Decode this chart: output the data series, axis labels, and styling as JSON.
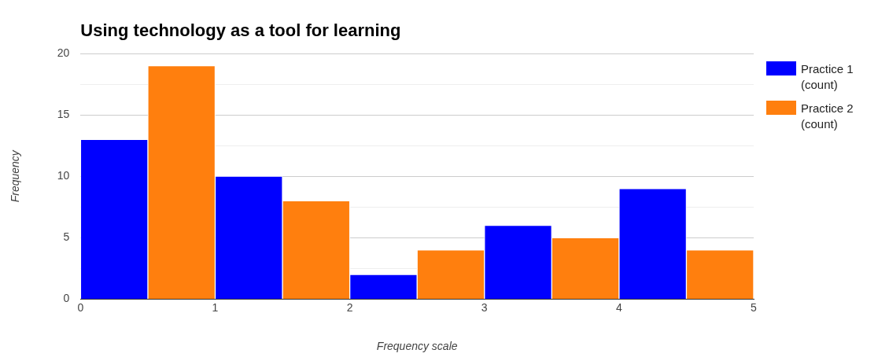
{
  "chart_data": {
    "type": "histogram",
    "title": "Using technology as a tool for learning",
    "xlabel": "Frequency scale",
    "ylabel": "Frequency",
    "bins": [
      0,
      1,
      2,
      3,
      4,
      5
    ],
    "series": [
      {
        "name": "Practice 1 (count)",
        "color": "#0000ff",
        "values": [
          13,
          10,
          2,
          6,
          9
        ]
      },
      {
        "name": "Practice 2 (count)",
        "color": "#ff7f0e",
        "values": [
          19,
          8,
          4,
          5,
          4
        ]
      }
    ],
    "xlim": [
      0,
      5
    ],
    "xticks": [
      0,
      1,
      2,
      3,
      4,
      5
    ],
    "ylim": [
      0,
      20
    ],
    "yticks": [
      0,
      {
        "value": 2.5,
        "label": null
      },
      5,
      {
        "value": 7.5,
        "label": null
      },
      10,
      {
        "value": 12.5,
        "label": null
      },
      15,
      {
        "value": 17.5,
        "label": null
      },
      20
    ],
    "grid": "y",
    "legend": "right"
  }
}
